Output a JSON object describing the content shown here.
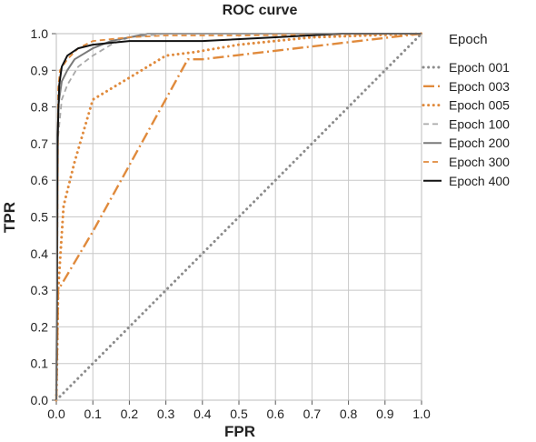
{
  "chart_data": {
    "type": "line",
    "title": "ROC curve",
    "xlabel": "FPR",
    "ylabel": "TPR",
    "xlim": [
      0,
      1
    ],
    "ylim": [
      0,
      1
    ],
    "x_ticks": [
      "0.0",
      "0.1",
      "0.2",
      "0.3",
      "0.4",
      "0.5",
      "0.6",
      "0.7",
      "0.8",
      "0.9",
      "1.0"
    ],
    "y_ticks": [
      "0.0",
      "0.1",
      "0.2",
      "0.3",
      "0.4",
      "0.5",
      "0.6",
      "0.7",
      "0.8",
      "0.9",
      "1.0"
    ],
    "grid": true,
    "legend_title": "Epoch",
    "legend_position": "right",
    "series": [
      {
        "name": "Epoch 001",
        "color": "#8c8c8c",
        "dash": "dot",
        "points": [
          [
            0,
            0
          ],
          [
            1,
            1
          ]
        ]
      },
      {
        "name": "Epoch 003",
        "color": "#e08a3c",
        "dash": "dashdot",
        "points": [
          [
            0,
            0
          ],
          [
            0.005,
            0.3
          ],
          [
            0.1,
            0.46
          ],
          [
            0.36,
            0.93
          ],
          [
            0.4,
            0.93
          ],
          [
            1,
            1
          ]
        ]
      },
      {
        "name": "Epoch 005",
        "color": "#e08a3c",
        "dash": "dot",
        "points": [
          [
            0,
            0
          ],
          [
            0.005,
            0.3
          ],
          [
            0.02,
            0.53
          ],
          [
            0.05,
            0.65
          ],
          [
            0.1,
            0.82
          ],
          [
            0.2,
            0.88
          ],
          [
            0.3,
            0.94
          ],
          [
            0.38,
            0.95
          ],
          [
            0.5,
            0.97
          ],
          [
            0.7,
            0.99
          ],
          [
            1,
            1
          ]
        ]
      },
      {
        "name": "Epoch 100",
        "color": "#a8a8a8",
        "dash": "dash",
        "points": [
          [
            0,
            0
          ],
          [
            0.005,
            0.72
          ],
          [
            0.015,
            0.82
          ],
          [
            0.03,
            0.86
          ],
          [
            0.06,
            0.91
          ],
          [
            0.1,
            0.94
          ],
          [
            0.15,
            0.97
          ],
          [
            0.2,
            0.99
          ],
          [
            0.3,
            1.0
          ],
          [
            1,
            1
          ]
        ]
      },
      {
        "name": "Epoch 200",
        "color": "#7a7a7a",
        "dash": "solid",
        "points": [
          [
            0,
            0
          ],
          [
            0.005,
            0.8
          ],
          [
            0.015,
            0.87
          ],
          [
            0.03,
            0.9
          ],
          [
            0.05,
            0.93
          ],
          [
            0.1,
            0.96
          ],
          [
            0.15,
            0.98
          ],
          [
            0.25,
            1.0
          ],
          [
            1,
            1
          ]
        ]
      },
      {
        "name": "Epoch 300",
        "color": "#e08a3c",
        "dash": "dash",
        "points": [
          [
            0,
            0
          ],
          [
            0.005,
            0.85
          ],
          [
            0.01,
            0.9
          ],
          [
            0.03,
            0.93
          ],
          [
            0.06,
            0.96
          ],
          [
            0.1,
            0.98
          ],
          [
            0.2,
            0.99
          ],
          [
            0.3,
            0.995
          ],
          [
            0.5,
            0.995
          ],
          [
            1,
            1
          ]
        ]
      },
      {
        "name": "Epoch 400",
        "color": "#111111",
        "dash": "solid",
        "points": [
          [
            0,
            0
          ],
          [
            0.003,
            0.7
          ],
          [
            0.008,
            0.86
          ],
          [
            0.015,
            0.91
          ],
          [
            0.03,
            0.94
          ],
          [
            0.06,
            0.96
          ],
          [
            0.1,
            0.97
          ],
          [
            0.2,
            0.98
          ],
          [
            0.4,
            0.98
          ],
          [
            0.6,
            0.99
          ],
          [
            0.78,
            1.0
          ],
          [
            1,
            1
          ]
        ]
      }
    ]
  }
}
